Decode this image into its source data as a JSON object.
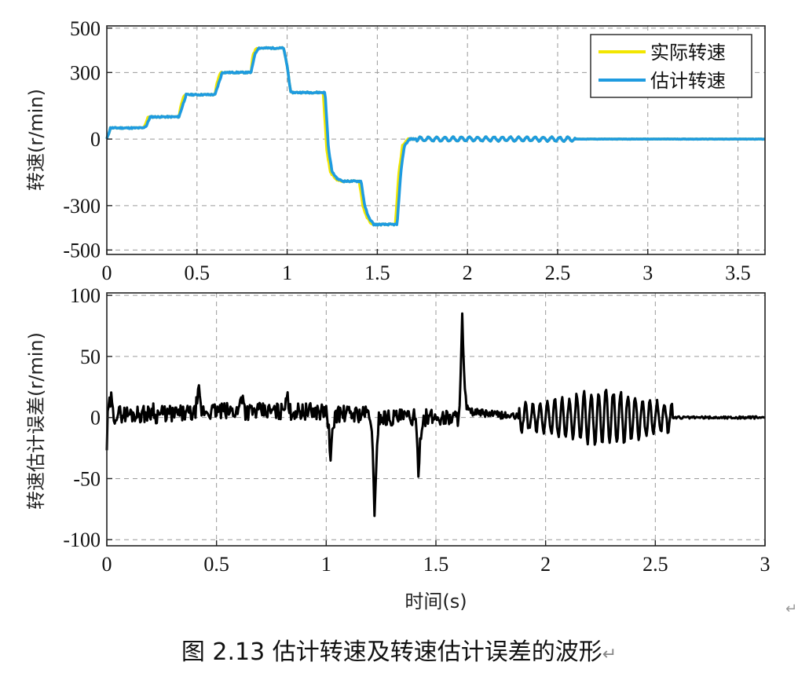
{
  "caption": "图 2.13  估计转速及转速估计误差的波形",
  "caption_mark": "↵",
  "stray_mark": "↵",
  "chart_data": [
    {
      "type": "line",
      "ylabel": "转速(r/min)",
      "xlabel": "",
      "xlim": [
        0,
        3.65
      ],
      "ylim": [
        -520,
        510
      ],
      "x_ticks": [
        "0",
        "0.5",
        "1",
        "1.5",
        "2",
        "2.5",
        "3",
        "3.5"
      ],
      "x_tick_values": [
        0,
        0.5,
        1,
        1.5,
        2,
        2.5,
        3,
        3.5
      ],
      "y_ticks": [
        "500",
        "300",
        "0",
        "-300",
        "-500"
      ],
      "y_tick_values": [
        500,
        300,
        0,
        -300,
        -500
      ],
      "grid": true,
      "legend": "top-right",
      "series": [
        {
          "name": "实际转速",
          "color": "#f2e600",
          "x": [
            0,
            0.02,
            0.2,
            0.21,
            0.23,
            0.4,
            0.41,
            0.43,
            0.6,
            0.61,
            0.63,
            0.8,
            0.81,
            0.83,
            0.98,
            1.0,
            1.02,
            1.2,
            1.22,
            1.24,
            1.27,
            1.3,
            1.4,
            1.42,
            1.44,
            1.47,
            1.6,
            1.62,
            1.64,
            1.67,
            1.7,
            2.0,
            2.5,
            3.0,
            3.65
          ],
          "values": [
            0,
            50,
            50,
            60,
            100,
            100,
            150,
            200,
            200,
            250,
            300,
            300,
            380,
            410,
            410,
            330,
            210,
            210,
            -50,
            -150,
            -180,
            -190,
            -190,
            -300,
            -350,
            -385,
            -385,
            -150,
            -30,
            0,
            0,
            0,
            0,
            0,
            0
          ]
        },
        {
          "name": "估计转速",
          "color": "#1e9be0",
          "x": [
            0,
            0.02,
            0.2,
            0.22,
            0.24,
            0.4,
            0.42,
            0.44,
            0.6,
            0.62,
            0.64,
            0.8,
            0.82,
            0.84,
            0.98,
            1.0,
            1.02,
            1.21,
            1.23,
            1.25,
            1.28,
            1.31,
            1.41,
            1.43,
            1.45,
            1.48,
            1.61,
            1.63,
            1.65,
            1.68,
            1.71,
            2.0,
            2.5,
            3.0,
            3.65
          ],
          "values": [
            0,
            50,
            50,
            60,
            100,
            100,
            150,
            200,
            200,
            250,
            300,
            300,
            380,
            410,
            410,
            330,
            210,
            210,
            -50,
            -150,
            -180,
            -190,
            -190,
            -300,
            -350,
            -385,
            -385,
            -150,
            -30,
            0,
            0,
            0,
            0,
            0,
            0
          ]
        }
      ]
    },
    {
      "type": "line",
      "ylabel": "转速估计误差(r/min)",
      "xlabel": "时间(s)",
      "xlim": [
        0,
        3
      ],
      "ylim": [
        -105,
        102
      ],
      "x_ticks": [
        "0",
        "0.5",
        "1",
        "1.5",
        "2",
        "2.5",
        "3"
      ],
      "x_tick_values": [
        0,
        0.5,
        1,
        1.5,
        2,
        2.5,
        3
      ],
      "y_ticks": [
        "100",
        "50",
        "0",
        "-50",
        "-100"
      ],
      "y_tick_values": [
        100,
        50,
        0,
        -50,
        -100
      ],
      "grid": true,
      "series": [
        {
          "name": "",
          "color": "#000000",
          "x": [
            0,
            0.005,
            0.02,
            0.03,
            0.04,
            0.2,
            0.21,
            0.22,
            0.23,
            0.4,
            0.41,
            0.42,
            0.43,
            0.6,
            0.61,
            0.62,
            0.63,
            0.8,
            0.81,
            0.82,
            0.83,
            1.0,
            1.01,
            1.02,
            1.03,
            1.04,
            1.2,
            1.21,
            1.22,
            1.23,
            1.24,
            1.4,
            1.41,
            1.42,
            1.43,
            1.44,
            1.6,
            1.61,
            1.62,
            1.63,
            1.64,
            1.9,
            2.0,
            2.1,
            2.3,
            2.5,
            2.56,
            2.6,
            3.0
          ],
          "values": [
            -25,
            5,
            15,
            0,
            3,
            3,
            10,
            0,
            3,
            3,
            12,
            20,
            5,
            5,
            15,
            20,
            5,
            5,
            12,
            20,
            5,
            5,
            -5,
            -38,
            -10,
            3,
            3,
            -20,
            -83,
            -25,
            0,
            0,
            -10,
            -42,
            -15,
            0,
            0,
            20,
            80,
            25,
            5,
            0,
            0,
            0,
            0,
            0,
            0,
            0,
            0
          ]
        }
      ]
    }
  ]
}
